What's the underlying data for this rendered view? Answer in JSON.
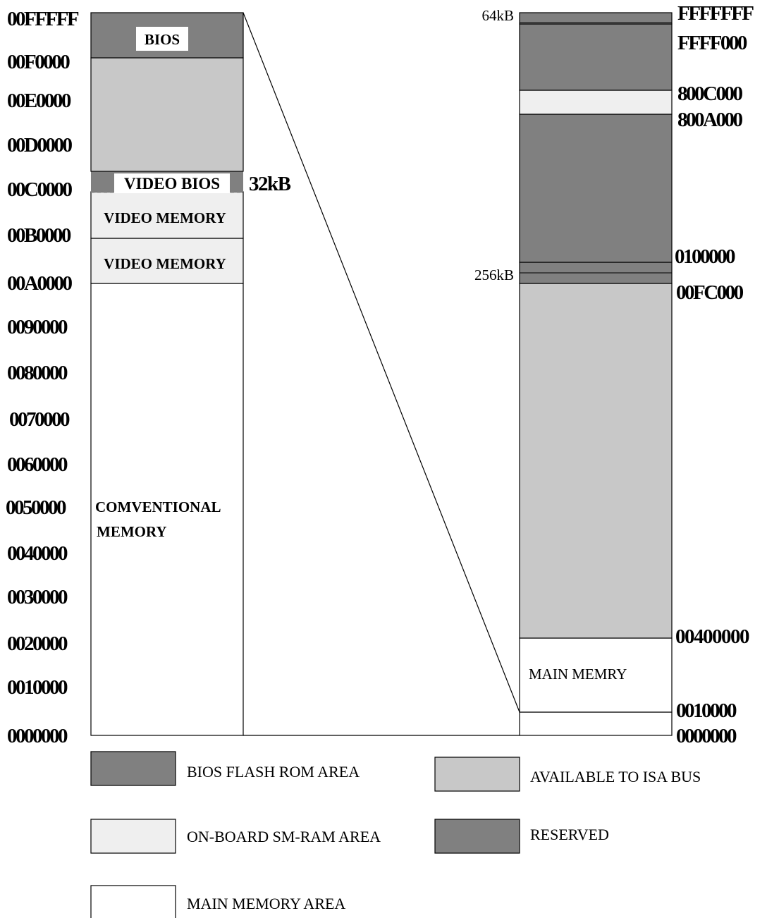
{
  "colors": {
    "bios_flash_rom": "#808080",
    "available_isa": "#c8c8c8",
    "onboard_smram": "#efefef",
    "reserved": "#808080",
    "main_memory": "#ffffff",
    "outline": "#000000"
  },
  "left_map": {
    "addresses": [
      "00FFFFF",
      "00F0000",
      "00E0000",
      "00D0000",
      "00C0000",
      "00B0000",
      "00A0000",
      "0090000",
      "0080000",
      "0070000",
      "0060000",
      "0050000",
      "0040000",
      "0030000",
      "0020000",
      "0010000",
      "0000000"
    ],
    "regions": {
      "bios": "BIOS",
      "video_bios": "VIDEO BIOS",
      "video_memory_upper": "VIDEO MEMORY",
      "video_memory_lower": "VIDEO MEMORY",
      "conventional_line1": "COMVENTIONAL",
      "conventional_line2": "MEMORY"
    },
    "video_bios_size": "32kB"
  },
  "right_map": {
    "addresses": [
      "FFFFFFF",
      "FFFF000",
      "800C000",
      "800A000",
      "0100000",
      "00FC000",
      "00400000",
      "0010000",
      "0000000"
    ],
    "size_top": "64kB",
    "size_mid": "256kB",
    "main_memory_label": "MAIN MEMRY"
  },
  "legend": [
    {
      "label": "BIOS FLASH ROM AREA",
      "color": "#808080"
    },
    {
      "label": "AVAILABLE TO ISA BUS",
      "color": "#c8c8c8"
    },
    {
      "label": "ON-BOARD SM-RAM AREA",
      "color": "#efefef"
    },
    {
      "label": "RESERVED",
      "color": "#808080"
    },
    {
      "label": "MAIN MEMORY AREA",
      "color": "#ffffff"
    }
  ]
}
